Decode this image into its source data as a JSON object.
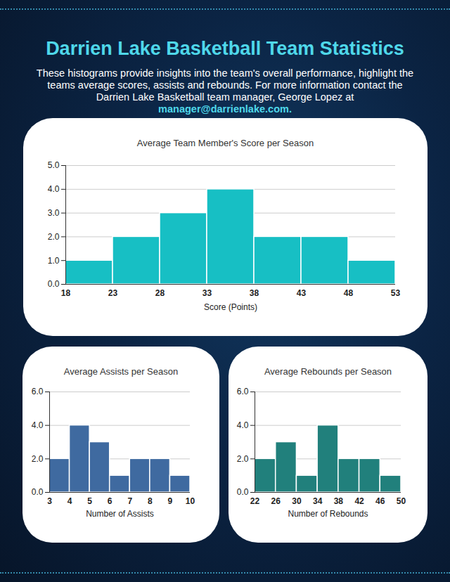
{
  "title": "Darrien Lake Basketball Team Statistics",
  "subtitle": [
    "These histograms provide insights into the team's overall performance, highlight the teams average scores, assists and rebounds. For more information contact the Darrien Lake Basketball team manager, George Lopez at ",
    "manager@darrienlake.com."
  ],
  "chart_data": [
    {
      "type": "histogram",
      "title": "Average Team Member's Score per Season",
      "x_label": "Score (Points)",
      "bins": [
        18,
        23,
        28,
        33,
        38,
        43,
        48,
        53
      ],
      "values": [
        1,
        2,
        3,
        4,
        2,
        2,
        1
      ],
      "color": "#17bfc4",
      "ylim": [
        0,
        5
      ],
      "yticks": [
        0,
        1,
        2,
        3,
        4,
        5
      ],
      "grid": true,
      "tick_labels": "x"
    },
    {
      "type": "histogram",
      "title": "Average Assists per Season",
      "x_label": "Number of Assists",
      "bins": [
        3,
        4,
        5,
        6,
        7,
        8,
        9,
        10
      ],
      "values": [
        2,
        4,
        3,
        1,
        2,
        2,
        1
      ],
      "color": "#3f6aa0",
      "ylim": [
        0,
        6
      ],
      "yticks": [
        0,
        2,
        4,
        6
      ],
      "grid": true,
      "tick_labels": "x"
    },
    {
      "type": "histogram",
      "title": "Average Rebounds per Season",
      "x_label": "Number of Rebounds",
      "bins": [
        22,
        26,
        30,
        34,
        38,
        42,
        46,
        50
      ],
      "values": [
        2,
        3,
        1,
        4,
        2,
        2,
        1
      ],
      "color": "#21807c",
      "ylim": [
        0,
        6
      ],
      "yticks": [
        0,
        2,
        4,
        6
      ],
      "grid": true,
      "tick_labels": "x"
    }
  ]
}
